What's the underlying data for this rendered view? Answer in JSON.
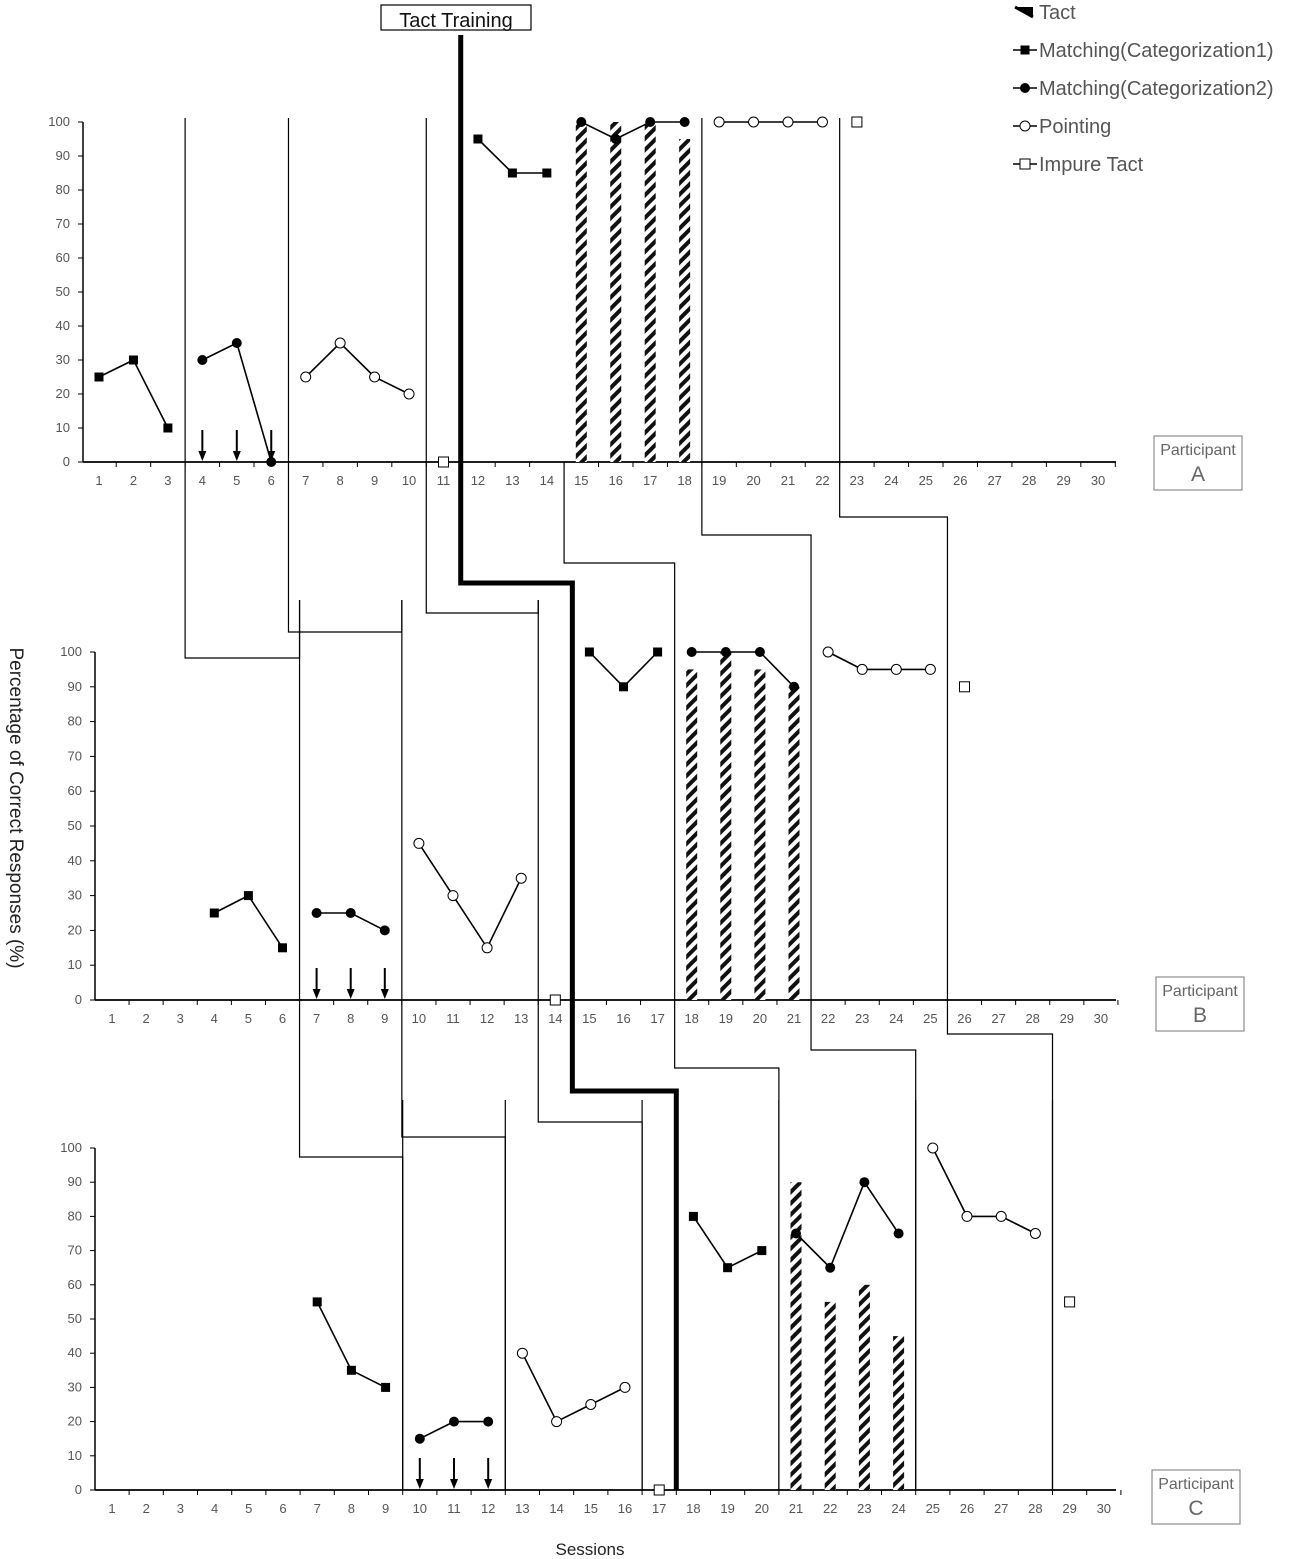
{
  "chart_data": {
    "type": "line",
    "title": "",
    "ylabel": "Percentage of Correct Responses (%)",
    "xlabel": "Sessions",
    "phase_label": "Tact Training",
    "ylim": [
      0,
      100
    ],
    "yticks": [
      0,
      10,
      20,
      30,
      40,
      50,
      60,
      70,
      80,
      90,
      100
    ],
    "xlim": [
      1,
      30
    ],
    "xticks": [
      1,
      2,
      3,
      4,
      5,
      6,
      7,
      8,
      9,
      10,
      11,
      12,
      13,
      14,
      15,
      16,
      17,
      18,
      19,
      20,
      21,
      22,
      23,
      24,
      25,
      26,
      27,
      28,
      29,
      30
    ],
    "legend": [
      {
        "key": "tact",
        "label": "Tact"
      },
      {
        "key": "m1",
        "label": "Matching(Categorization1)"
      },
      {
        "key": "m2",
        "label": "Matching(Categorization2)"
      },
      {
        "key": "pointing",
        "label": "Pointing"
      },
      {
        "key": "impure",
        "label": "Impure Tact"
      }
    ],
    "legend_position": "top-right",
    "panels": [
      {
        "participant_label": "Participant",
        "participant_letter": "A",
        "series": [
          {
            "key": "m1",
            "segments": [
              [
                [
                  1,
                  25
                ],
                [
                  2,
                  30
                ],
                [
                  3,
                  10
                ]
              ],
              [
                [
                  12,
                  95
                ],
                [
                  13,
                  85
                ],
                [
                  14,
                  85
                ]
              ]
            ]
          },
          {
            "key": "m2",
            "segments": [
              [
                [
                  4,
                  30
                ],
                [
                  5,
                  35
                ],
                [
                  6,
                  0
                ]
              ],
              [
                [
                  15,
                  100
                ],
                [
                  16,
                  95
                ],
                [
                  17,
                  100
                ],
                [
                  18,
                  100
                ]
              ]
            ]
          },
          {
            "key": "pointing",
            "segments": [
              [
                [
                  7,
                  25
                ],
                [
                  8,
                  35
                ],
                [
                  9,
                  25
                ],
                [
                  10,
                  20
                ]
              ],
              [
                [
                  19,
                  100
                ],
                [
                  20,
                  100
                ],
                [
                  21,
                  100
                ],
                [
                  22,
                  100
                ]
              ]
            ]
          },
          {
            "key": "impure",
            "points": [
              [
                11,
                0
              ],
              [
                23,
                100
              ]
            ]
          },
          {
            "key": "tact",
            "bars": [
              [
                15,
                100
              ],
              [
                16,
                100
              ],
              [
                17,
                100
              ],
              [
                18,
                95
              ]
            ]
          }
        ],
        "arrows": [
          4,
          5,
          6
        ],
        "phase_lines": [
          3.5,
          6.5,
          10.5,
          18.5,
          22.5
        ]
      },
      {
        "participant_label": "Participant",
        "participant_letter": "B",
        "series": [
          {
            "key": "m1",
            "segments": [
              [
                [
                  4,
                  25
                ],
                [
                  5,
                  30
                ],
                [
                  6,
                  15
                ]
              ],
              [
                [
                  15,
                  100
                ],
                [
                  16,
                  90
                ],
                [
                  17,
                  100
                ]
              ]
            ]
          },
          {
            "key": "m2",
            "segments": [
              [
                [
                  7,
                  25
                ],
                [
                  8,
                  25
                ],
                [
                  9,
                  20
                ]
              ],
              [
                [
                  18,
                  100
                ],
                [
                  19,
                  100
                ],
                [
                  20,
                  100
                ],
                [
                  21,
                  90
                ]
              ]
            ]
          },
          {
            "key": "pointing",
            "segments": [
              [
                [
                  10,
                  45
                ],
                [
                  11,
                  30
                ],
                [
                  12,
                  15
                ],
                [
                  13,
                  35
                ]
              ],
              [
                [
                  22,
                  100
                ],
                [
                  23,
                  95
                ],
                [
                  24,
                  95
                ],
                [
                  25,
                  95
                ]
              ]
            ]
          },
          {
            "key": "impure",
            "points": [
              [
                14,
                0
              ],
              [
                26,
                90
              ]
            ]
          },
          {
            "key": "tact",
            "bars": [
              [
                18,
                95
              ],
              [
                19,
                100
              ],
              [
                20,
                95
              ],
              [
                21,
                90
              ]
            ]
          }
        ],
        "arrows": [
          7,
          8,
          9
        ],
        "phase_lines": [
          6.5,
          9.5,
          13.5,
          17.5,
          21.5,
          25.5
        ]
      },
      {
        "participant_label": "Participant",
        "participant_letter": "C",
        "series": [
          {
            "key": "m1",
            "segments": [
              [
                [
                  7,
                  55
                ],
                [
                  8,
                  35
                ],
                [
                  9,
                  30
                ]
              ],
              [
                [
                  18,
                  80
                ],
                [
                  19,
                  65
                ],
                [
                  20,
                  70
                ]
              ]
            ]
          },
          {
            "key": "m2",
            "segments": [
              [
                [
                  10,
                  15
                ],
                [
                  11,
                  20
                ],
                [
                  12,
                  20
                ]
              ],
              [
                [
                  21,
                  75
                ],
                [
                  22,
                  65
                ],
                [
                  23,
                  90
                ],
                [
                  24,
                  75
                ]
              ]
            ]
          },
          {
            "key": "pointing",
            "segments": [
              [
                [
                  13,
                  40
                ],
                [
                  14,
                  20
                ],
                [
                  15,
                  25
                ],
                [
                  16,
                  30
                ]
              ],
              [
                [
                  25,
                  100
                ],
                [
                  26,
                  80
                ],
                [
                  27,
                  80
                ],
                [
                  28,
                  75
                ]
              ]
            ]
          },
          {
            "key": "impure",
            "points": [
              [
                17,
                0
              ],
              [
                29,
                55
              ]
            ]
          },
          {
            "key": "tact",
            "bars": [
              [
                21,
                90
              ],
              [
                22,
                55
              ],
              [
                23,
                60
              ],
              [
                24,
                45
              ]
            ]
          }
        ],
        "arrows": [
          10,
          11,
          12
        ],
        "phase_lines": [
          9.5,
          12.5,
          16.5,
          20.5,
          24.5,
          28.5
        ]
      }
    ]
  }
}
